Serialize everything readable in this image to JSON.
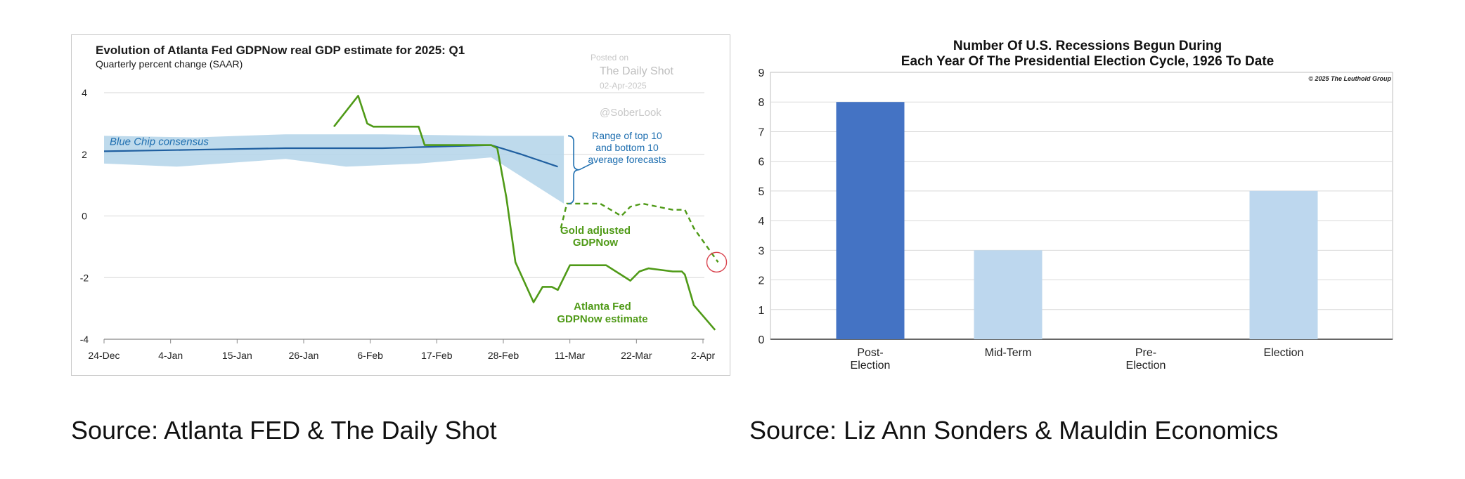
{
  "sources": {
    "left": "Source: Atlanta FED & The Daily Shot",
    "right": "Source: Liz Ann Sonders & Mauldin Economics"
  },
  "chart_data": [
    {
      "type": "line",
      "title": "Evolution of Atlanta Fed GDPNow real GDP estimate for 2025: Q1",
      "subtitle": "Quarterly percent change (SAAR)",
      "watermark": {
        "posted_on": "Posted on",
        "outlet": "The Daily Shot",
        "date": "02-Apr-2025",
        "handle": "@SoberLook"
      },
      "xlabel": "",
      "ylabel": "",
      "ylim": [
        -4,
        4
      ],
      "yticks": [
        "4",
        "2",
        "0",
        "-2",
        "-4"
      ],
      "xticks": [
        "24-Dec",
        "4-Jan",
        "15-Jan",
        "26-Jan",
        "6-Feb",
        "17-Feb",
        "28-Feb",
        "11-Mar",
        "22-Mar",
        "2-Apr"
      ],
      "xticks_day": [
        0,
        11,
        22,
        33,
        44,
        55,
        66,
        77,
        88,
        99
      ],
      "grid": true,
      "colors": {
        "consensus": "#1f5fa0",
        "band": "#b7d6ea",
        "gdpnow": "#4f9a17",
        "gold_adjusted": "#4f9a17",
        "marker": "#d9434e",
        "annotation": "#1f6fb0"
      },
      "series": [
        {
          "name": "Blue Chip consensus",
          "style": "solid",
          "points": [
            [
              0,
              2.1
            ],
            [
              15,
              2.15
            ],
            [
              30,
              2.2
            ],
            [
              46,
              2.2
            ],
            [
              64,
              2.3
            ],
            [
              69,
              2.0
            ],
            [
              75,
              1.6
            ]
          ]
        },
        {
          "name": "Range of top 10 and bottom 10 average forecasts",
          "style": "band",
          "upper": [
            [
              0,
              2.6
            ],
            [
              15,
              2.55
            ],
            [
              30,
              2.65
            ],
            [
              46,
              2.65
            ],
            [
              64,
              2.6
            ],
            [
              76,
              2.6
            ]
          ],
          "lower": [
            [
              0,
              1.7
            ],
            [
              12,
              1.6
            ],
            [
              30,
              1.85
            ],
            [
              40,
              1.6
            ],
            [
              52,
              1.7
            ],
            [
              64,
              1.9
            ],
            [
              76,
              0.4
            ]
          ]
        },
        {
          "name": "Atlanta Fed GDPNow estimate",
          "style": "solid",
          "points": [
            [
              38,
              2.9
            ],
            [
              42,
              3.9
            ],
            [
              43.5,
              3.0
            ],
            [
              44.5,
              2.9
            ],
            [
              52,
              2.9
            ],
            [
              53,
              2.3
            ],
            [
              64,
              2.3
            ],
            [
              65,
              2.2
            ],
            [
              66.5,
              0.6
            ],
            [
              68,
              -1.5
            ],
            [
              71,
              -2.8
            ],
            [
              72.5,
              -2.3
            ],
            [
              74,
              -2.3
            ],
            [
              75,
              -2.4
            ],
            [
              77,
              -1.6
            ],
            [
              83,
              -1.6
            ],
            [
              87,
              -2.1
            ],
            [
              88.5,
              -1.8
            ],
            [
              90,
              -1.7
            ],
            [
              94,
              -1.8
            ],
            [
              95.5,
              -1.8
            ],
            [
              96,
              -1.9
            ],
            [
              97.5,
              -2.9
            ],
            [
              101,
              -3.7
            ]
          ]
        },
        {
          "name": "Gold adjusted GDPNow",
          "style": "dashed",
          "points": [
            [
              75.5,
              -0.4
            ],
            [
              76.5,
              0.4
            ],
            [
              82,
              0.4
            ],
            [
              85.5,
              0.0
            ],
            [
              87,
              0.3
            ],
            [
              89,
              0.4
            ],
            [
              94,
              0.2
            ],
            [
              96,
              0.2
            ],
            [
              97.5,
              -0.4
            ],
            [
              101.5,
              -1.5
            ]
          ]
        }
      ],
      "annotations": {
        "consensus_label": "Blue Chip consensus",
        "range_label": [
          "Range of top 10",
          "and bottom 10",
          "average forecasts"
        ],
        "gold_label": [
          "Gold adjusted",
          "GDPNow"
        ],
        "gdpnow_label": [
          "Atlanta Fed",
          "GDPNow estimate"
        ]
      }
    },
    {
      "type": "bar",
      "title": [
        "Number Of U.S. Recessions Begun During",
        "Each Year Of The Presidential Election Cycle, 1926 To Date"
      ],
      "copyright": "© 2025 The Leuthold Group",
      "categories": [
        [
          "Post-",
          "Election"
        ],
        [
          "Mid-Term"
        ],
        [
          "Pre-",
          "Election"
        ],
        [
          "Election"
        ]
      ],
      "values": [
        8,
        3,
        0,
        5
      ],
      "ylim": [
        0,
        9
      ],
      "yticks": [
        "0",
        "1",
        "2",
        "3",
        "4",
        "5",
        "6",
        "7",
        "8",
        "9"
      ],
      "xlabel": "",
      "ylabel": "",
      "grid": true,
      "colors": {
        "highlight": "#4473c4",
        "bar": "#bdd7ee",
        "grid": "#d9d9d9"
      },
      "highlight_index": 0
    }
  ]
}
